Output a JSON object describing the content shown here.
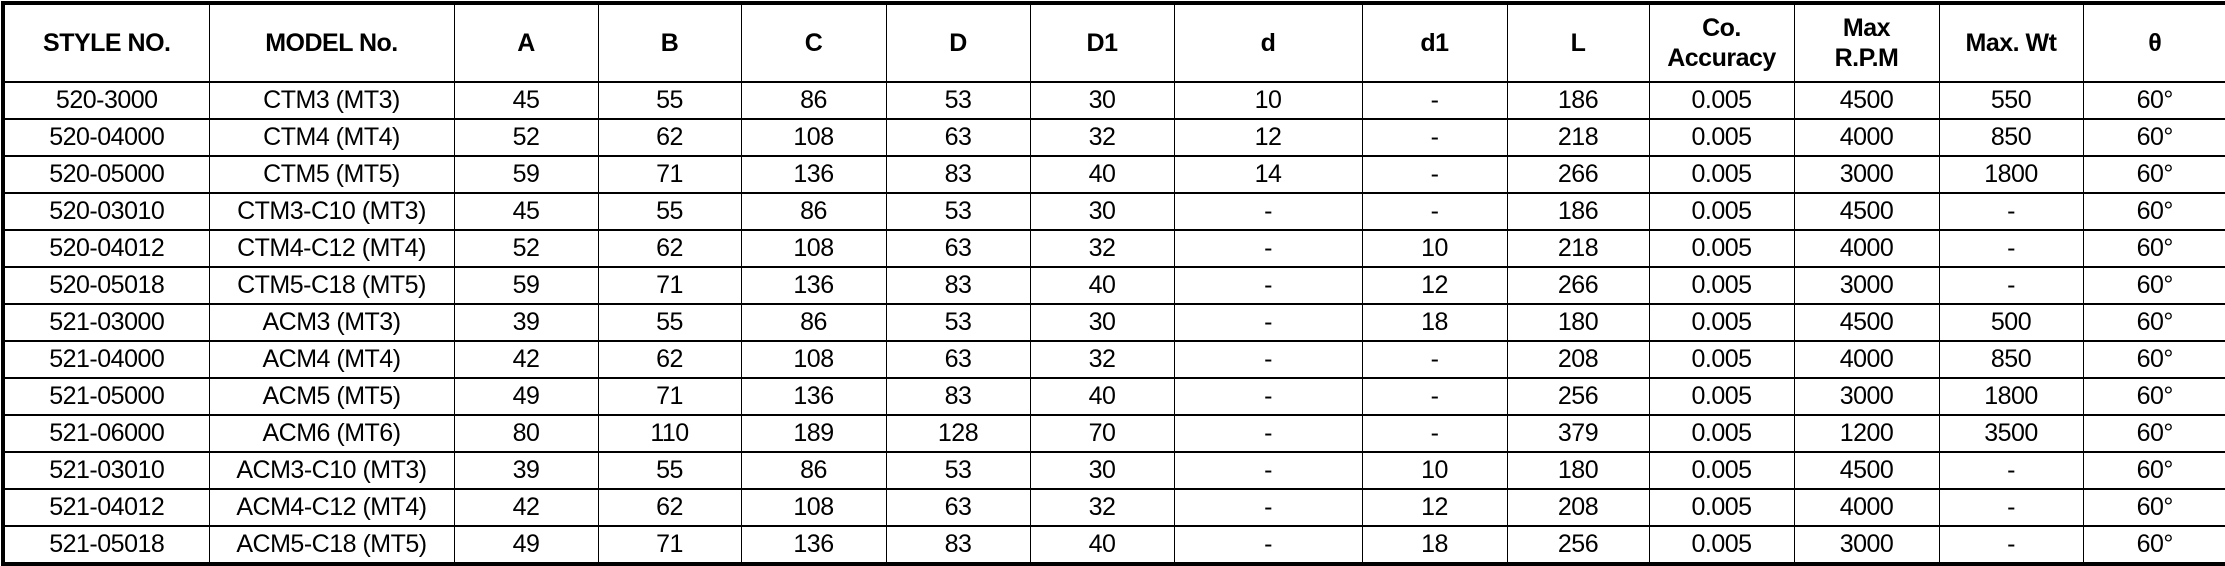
{
  "table": {
    "headers": [
      "STYLE NO.",
      "MODEL No.",
      "A",
      "B",
      "C",
      "D",
      "D1",
      "d",
      "d1",
      "L",
      "Co.\nAccuracy",
      "Max\nR.P.M",
      "Max. Wt",
      "θ"
    ],
    "rows": [
      [
        "520-3000",
        "CTM3 (MT3)",
        "45",
        "55",
        "86",
        "53",
        "30",
        "10",
        "-",
        "186",
        "0.005",
        "4500",
        "550",
        "60°"
      ],
      [
        "520-04000",
        "CTM4 (MT4)",
        "52",
        "62",
        "108",
        "63",
        "32",
        "12",
        "-",
        "218",
        "0.005",
        "4000",
        "850",
        "60°"
      ],
      [
        "520-05000",
        "CTM5 (MT5)",
        "59",
        "71",
        "136",
        "83",
        "40",
        "14",
        "-",
        "266",
        "0.005",
        "3000",
        "1800",
        "60°"
      ],
      [
        "520-03010",
        "CTM3-C10 (MT3)",
        "45",
        "55",
        "86",
        "53",
        "30",
        "-",
        "-",
        "186",
        "0.005",
        "4500",
        "-",
        "60°"
      ],
      [
        "520-04012",
        "CTM4-C12 (MT4)",
        "52",
        "62",
        "108",
        "63",
        "32",
        "-",
        "10",
        "218",
        "0.005",
        "4000",
        "-",
        "60°"
      ],
      [
        "520-05018",
        "CTM5-C18 (MT5)",
        "59",
        "71",
        "136",
        "83",
        "40",
        "-",
        "12",
        "266",
        "0.005",
        "3000",
        "-",
        "60°"
      ],
      [
        "521-03000",
        "ACM3 (MT3)",
        "39",
        "55",
        "86",
        "53",
        "30",
        "-",
        "18",
        "180",
        "0.005",
        "4500",
        "500",
        "60°"
      ],
      [
        "521-04000",
        "ACM4 (MT4)",
        "42",
        "62",
        "108",
        "63",
        "32",
        "-",
        "-",
        "208",
        "0.005",
        "4000",
        "850",
        "60°"
      ],
      [
        "521-05000",
        "ACM5 (MT5)",
        "49",
        "71",
        "136",
        "83",
        "40",
        "-",
        "-",
        "256",
        "0.005",
        "3000",
        "1800",
        "60°"
      ],
      [
        "521-06000",
        "ACM6 (MT6)",
        "80",
        "110",
        "189",
        "128",
        "70",
        "-",
        "-",
        "379",
        "0.005",
        "1200",
        "3500",
        "60°"
      ],
      [
        "521-03010",
        "ACM3-C10 (MT3)",
        "39",
        "55",
        "86",
        "53",
        "30",
        "-",
        "10",
        "180",
        "0.005",
        "4500",
        "-",
        "60°"
      ],
      [
        "521-04012",
        "ACM4-C12 (MT4)",
        "42",
        "62",
        "108",
        "63",
        "32",
        "-",
        "12",
        "208",
        "0.005",
        "4000",
        "-",
        "60°"
      ],
      [
        "521-05018",
        "ACM5-C18 (MT5)",
        "49",
        "71",
        "136",
        "83",
        "40",
        "-",
        "18",
        "256",
        "0.005",
        "3000",
        "-",
        "60°"
      ]
    ]
  }
}
